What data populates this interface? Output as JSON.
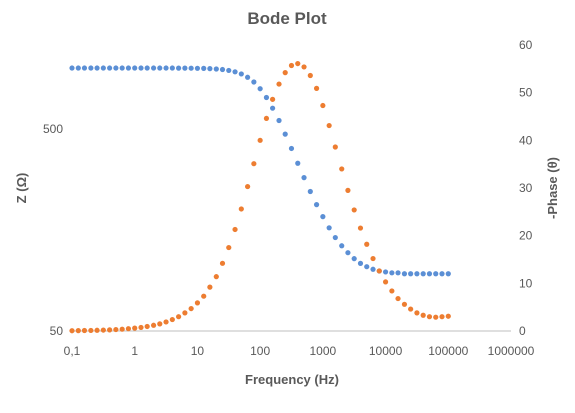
{
  "chart_data": {
    "type": "scatter",
    "title": "Bode Plot",
    "xlabel": "Frequency (Hz)",
    "ylabel_left": "Z (Ω)",
    "ylabel_right": "-Phase (θ)",
    "x_scale": "log",
    "xlim": [
      0.1,
      1000000
    ],
    "x_ticks": [
      "0,1",
      "1",
      "10",
      "100",
      "1000",
      "10000",
      "100000",
      "1000000"
    ],
    "y_left_scale": "log",
    "y_left_lim": [
      50,
      1300
    ],
    "y_left_ticks": [
      "50",
      "500"
    ],
    "y_right_lim": [
      0,
      60
    ],
    "y_right_ticks": [
      "0",
      "10",
      "20",
      "30",
      "40",
      "50",
      "60"
    ],
    "grid": false,
    "legend": "none",
    "colors": {
      "Z": "#5b8fd5",
      "Phase": "#ed7d31"
    },
    "series": [
      {
        "axis": "left",
        "x": [
          0.1,
          0.126,
          0.158,
          0.2,
          0.251,
          0.316,
          0.398,
          0.501,
          0.631,
          0.794,
          1,
          1.26,
          1.58,
          2,
          2.51,
          3.16,
          3.98,
          5.01,
          6.31,
          7.94,
          10,
          12.6,
          15.8,
          20,
          25.1,
          31.6,
          39.8,
          50.1,
          63.1,
          79.4,
          100,
          126,
          158,
          200,
          251,
          316,
          398,
          501,
          631,
          794,
          1000,
          1260,
          1580,
          2000,
          2510,
          3160,
          3980,
          5010,
          6310,
          7940,
          10000,
          12600,
          15800,
          20000,
          25100,
          31600,
          39800,
          50100,
          63100,
          79400,
          100000
        ],
        "values": [
          1000,
          1000,
          1000,
          1000,
          1000,
          1000,
          1000,
          1000,
          1000,
          1000,
          1000,
          1000,
          1000,
          1000,
          1000,
          1000,
          1000,
          999,
          999,
          998,
          997,
          996,
          993,
          989,
          983,
          973,
          958,
          935,
          900,
          853,
          790,
          715,
          633,
          550,
          471,
          400,
          338,
          287,
          245,
          211,
          184,
          162,
          145,
          132,
          122,
          114,
          108,
          104,
          101,
          99,
          98,
          97,
          97,
          96,
          96,
          96,
          96,
          96,
          96,
          96,
          96
        ]
      },
      {
        "axis": "right",
        "x": [
          0.1,
          0.126,
          0.158,
          0.2,
          0.251,
          0.316,
          0.398,
          0.501,
          0.631,
          0.794,
          1,
          1.26,
          1.58,
          2,
          2.51,
          3.16,
          3.98,
          5.01,
          6.31,
          7.94,
          10,
          12.6,
          15.8,
          20,
          25.1,
          31.6,
          39.8,
          50.1,
          63.1,
          79.4,
          100,
          126,
          158,
          200,
          251,
          316,
          398,
          501,
          631,
          794,
          1000,
          1260,
          1580,
          2000,
          2510,
          3160,
          3980,
          5010,
          6310,
          7940,
          10000,
          12600,
          15800,
          20000,
          25100,
          31600,
          39800,
          50100,
          63100,
          79400,
          100000
        ],
        "values": [
          0.06,
          0.08,
          0.1,
          0.12,
          0.15,
          0.19,
          0.24,
          0.3,
          0.38,
          0.48,
          0.6,
          0.75,
          0.95,
          1.2,
          1.5,
          1.9,
          2.4,
          3,
          3.8,
          4.7,
          5.9,
          7.3,
          9.2,
          11.4,
          14.2,
          17.5,
          21.3,
          25.6,
          30.3,
          35.1,
          40,
          44.6,
          48.6,
          51.8,
          54.2,
          55.7,
          56.1,
          55.4,
          53.6,
          50.9,
          47.3,
          43.1,
          38.6,
          34,
          29.5,
          25.4,
          21.6,
          18.2,
          15.2,
          12.6,
          10.3,
          8.4,
          6.8,
          5.6,
          4.6,
          3.8,
          3.3,
          3,
          2.9,
          3,
          3.1
        ]
      }
    ]
  }
}
